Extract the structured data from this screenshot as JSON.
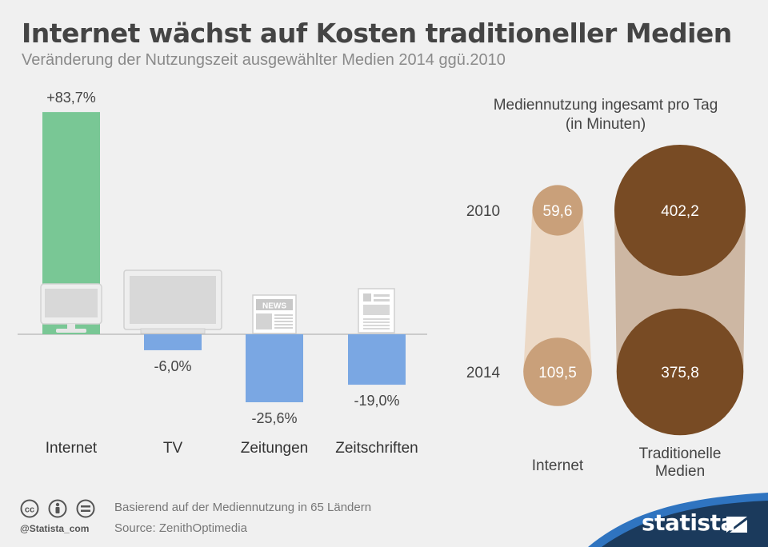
{
  "title": "Internet wächst auf Kosten traditioneller Medien",
  "subtitle": "Veränderung der Nutzungszeit ausgewählter Medien 2014 ggü.2010",
  "chart_data": [
    {
      "type": "bar",
      "categories": [
        "Internet",
        "TV",
        "Zeitungen",
        "Zeitschriften"
      ],
      "values": [
        83.7,
        -6.0,
        -25.6,
        -19.0
      ],
      "value_labels": [
        "+83,7%",
        "-6,0%",
        "-25,6%",
        "-19,0%"
      ],
      "unit": "%",
      "ylim": [
        -30,
        85
      ],
      "colors": {
        "positive": "#79c795",
        "negative": "#7aa7e3"
      },
      "icons": [
        "monitor-icon",
        "tv-icon",
        "newspaper-icon",
        "magazine-icon"
      ],
      "icon_text": {
        "newspaper": "NEWS"
      }
    },
    {
      "type": "bubble",
      "title": "Mediennutzung ingesamt pro Tag",
      "title_line2": "(in Minuten)",
      "years": [
        "2010",
        "2014"
      ],
      "series": [
        {
          "name": "Internet",
          "values": [
            59.6,
            109.5
          ],
          "labels": [
            "59,6",
            "109,5"
          ],
          "color": "#c9a07a",
          "band_color": "#ecd9c6"
        },
        {
          "name_lines": [
            "Traditionelle",
            "Medien"
          ],
          "values": [
            402.2,
            375.8
          ],
          "labels": [
            "402,2",
            "375,8"
          ],
          "color": "#784b24",
          "band_color": "#cdb7a3"
        }
      ]
    }
  ],
  "footer": {
    "note": "Basierend auf der Mediennutzung in 65 Ländern",
    "source": "Source: ZenithOptimedia",
    "handle": "@Statista_com",
    "brand": "statista"
  },
  "colors": {
    "brand_blue": "#1b3a5c",
    "accent_blue": "#2f74c0"
  }
}
